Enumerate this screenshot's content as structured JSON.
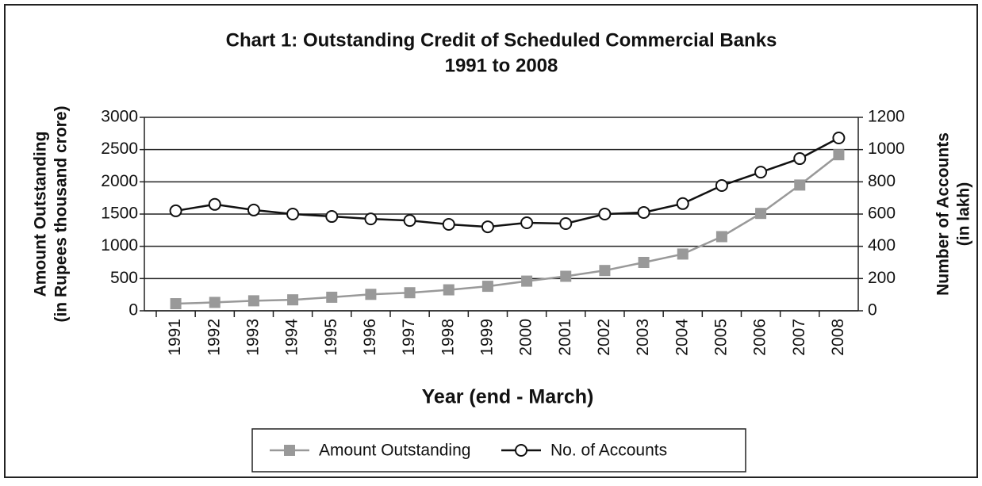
{
  "chart_data": {
    "type": "line",
    "title": "Chart 1: Outstanding Credit of Scheduled Commercial Banks",
    "subtitle": "1991 to 2008",
    "x_label": "Year (end - March)",
    "y_label": [
      "Amount Outstanding",
      "(in Rupees thousand crore)"
    ],
    "y2_label": [
      "Number of Accounts",
      "(in lakh)"
    ],
    "categories": [
      "1991",
      "1992",
      "1993",
      "1994",
      "1995",
      "1996",
      "1997",
      "1998",
      "1999",
      "2000",
      "2001",
      "2002",
      "2003",
      "2004",
      "2005",
      "2006",
      "2007",
      "2008"
    ],
    "series": [
      {
        "name": "Amount Outstanding",
        "color": "#999999",
        "marker": "square",
        "axis": "y",
        "values": [
          110,
          130,
          155,
          170,
          210,
          255,
          280,
          325,
          380,
          460,
          535,
          625,
          750,
          880,
          1150,
          1510,
          1950,
          2420
        ]
      },
      {
        "name": "No. of Accounts",
        "color": "#111111",
        "marker": "circle",
        "axis": "y2",
        "values": [
          620,
          660,
          625,
          600,
          585,
          570,
          560,
          536,
          521,
          546,
          541,
          600,
          610,
          665,
          777,
          860,
          944,
          1072
        ]
      }
    ],
    "ylim": [
      0,
      3000
    ],
    "yticks": [
      0,
      500,
      1000,
      1500,
      2000,
      2500,
      3000
    ],
    "y2lim": [
      0,
      1200
    ],
    "y2ticks": [
      0,
      200,
      400,
      600,
      800,
      1000,
      1200
    ],
    "grid": true,
    "legend": "bottom"
  }
}
